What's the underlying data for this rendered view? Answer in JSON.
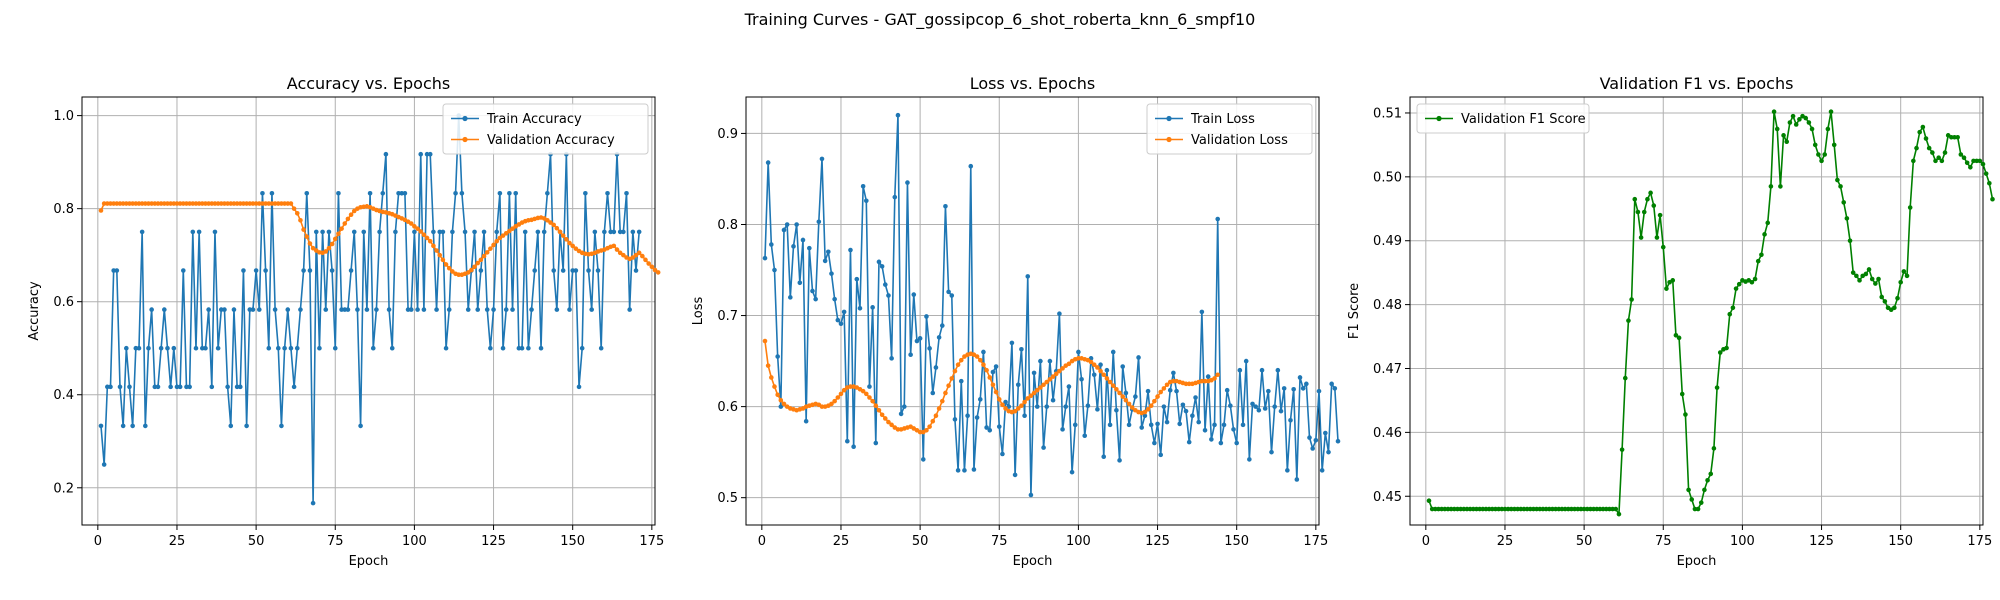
{
  "figure_title": "Training Curves - GAT_gossipcop_6_shot_roberta_knn_6_smpf10",
  "colors": {
    "blue": "#1f77b4",
    "orange": "#ff7f0e",
    "green": "#008000",
    "grid": "#b0b0b0"
  },
  "chart_data": [
    {
      "type": "line",
      "title": "Accuracy vs. Epochs",
      "xlabel": "Epoch",
      "ylabel": "Accuracy",
      "xlim": [
        -5,
        176
      ],
      "ylim": [
        0.12,
        1.04
      ],
      "xticks": [
        0,
        25,
        50,
        75,
        100,
        125,
        150,
        175
      ],
      "yticks": [
        0.2,
        0.4,
        0.6,
        0.8,
        1.0
      ],
      "ytick_labels": [
        "0.2",
        "0.4",
        "0.6",
        "0.8",
        "1.0"
      ],
      "grid": true,
      "legend_position": "upper-right",
      "series": [
        {
          "name": "Train Accuracy",
          "color": "#1f77b4",
          "values": [
            0.333,
            0.25,
            0.417,
            0.417,
            0.667,
            0.667,
            0.417,
            0.333,
            0.5,
            0.417,
            0.333,
            0.5,
            0.5,
            0.75,
            0.333,
            0.5,
            0.583,
            0.417,
            0.417,
            0.5,
            0.583,
            0.5,
            0.417,
            0.5,
            0.417,
            0.417,
            0.667,
            0.417,
            0.417,
            0.75,
            0.5,
            0.75,
            0.5,
            0.5,
            0.583,
            0.417,
            0.75,
            0.5,
            0.583,
            0.583,
            0.417,
            0.333,
            0.583,
            0.417,
            0.417,
            0.667,
            0.333,
            0.583,
            0.583,
            0.667,
            0.583,
            0.833,
            0.667,
            0.5,
            0.833,
            0.583,
            0.5,
            0.333,
            0.5,
            0.583,
            0.5,
            0.417,
            0.5,
            0.583,
            0.667,
            0.833,
            0.667,
            0.167,
            0.75,
            0.5,
            0.75,
            0.583,
            0.75,
            0.667,
            0.5,
            0.833,
            0.583,
            0.583,
            0.583,
            0.667,
            0.75,
            0.583,
            0.333,
            0.75,
            0.583,
            0.833,
            0.5,
            0.583,
            0.75,
            0.833,
            0.917,
            0.583,
            0.5,
            0.75,
            0.833,
            0.833,
            0.833,
            0.583,
            0.583,
            0.75,
            0.583,
            0.917,
            0.583,
            0.917,
            0.917,
            0.75,
            0.583,
            0.75,
            0.75,
            0.5,
            0.583,
            0.75,
            0.833,
            1.0,
            0.833,
            0.75,
            0.583,
            0.667,
            0.75,
            0.583,
            0.667,
            0.75,
            0.583,
            0.5,
            0.583,
            0.75,
            0.833,
            0.5,
            0.583,
            0.833,
            0.583,
            0.833,
            0.5,
            0.5,
            0.75,
            0.5,
            0.583,
            0.667,
            0.75,
            0.5,
            0.75,
            0.833,
            0.917,
            0.667,
            0.583,
            0.75,
            0.667,
            0.917,
            0.583,
            0.667,
            0.667,
            0.417,
            0.5,
            0.833,
            0.667,
            0.583,
            0.75,
            0.667,
            0.5,
            0.75,
            0.833,
            0.75,
            0.75,
            0.917,
            0.75,
            0.75,
            0.833,
            0.583,
            0.75,
            0.667,
            0.75
          ]
        },
        {
          "name": "Validation Accuracy",
          "color": "#ff7f0e",
          "values": [
            0.796,
            0.811,
            0.811,
            0.811,
            0.811,
            0.811,
            0.811,
            0.811,
            0.811,
            0.811,
            0.811,
            0.811,
            0.811,
            0.811,
            0.811,
            0.811,
            0.811,
            0.811,
            0.811,
            0.811,
            0.811,
            0.811,
            0.811,
            0.811,
            0.811,
            0.811,
            0.811,
            0.811,
            0.811,
            0.811,
            0.811,
            0.811,
            0.811,
            0.811,
            0.811,
            0.811,
            0.811,
            0.811,
            0.811,
            0.811,
            0.811,
            0.811,
            0.811,
            0.811,
            0.811,
            0.811,
            0.811,
            0.811,
            0.811,
            0.811,
            0.811,
            0.811,
            0.811,
            0.811,
            0.811,
            0.811,
            0.811,
            0.811,
            0.811,
            0.811,
            0.811,
            0.8,
            0.79,
            0.775,
            0.755,
            0.74,
            0.725,
            0.715,
            0.71,
            0.706,
            0.705,
            0.708,
            0.715,
            0.724,
            0.735,
            0.746,
            0.757,
            0.768,
            0.778,
            0.787,
            0.795,
            0.8,
            0.803,
            0.804,
            0.805,
            0.803,
            0.8,
            0.797,
            0.795,
            0.793,
            0.792,
            0.79,
            0.788,
            0.785,
            0.782,
            0.779,
            0.776,
            0.772,
            0.768,
            0.762,
            0.757,
            0.751,
            0.744,
            0.737,
            0.73,
            0.72,
            0.71,
            0.7,
            0.69,
            0.68,
            0.672,
            0.665,
            0.66,
            0.658,
            0.658,
            0.66,
            0.663,
            0.668,
            0.675,
            0.683,
            0.69,
            0.698,
            0.706,
            0.714,
            0.722,
            0.73,
            0.737,
            0.742,
            0.747,
            0.752,
            0.757,
            0.762,
            0.766,
            0.77,
            0.773,
            0.775,
            0.776,
            0.778,
            0.78,
            0.781,
            0.779,
            0.775,
            0.77,
            0.765,
            0.758,
            0.75,
            0.742,
            0.734,
            0.726,
            0.72,
            0.714,
            0.709,
            0.705,
            0.703,
            0.702,
            0.703,
            0.705,
            0.708,
            0.71,
            0.712,
            0.715,
            0.718,
            0.72,
            0.712,
            0.705,
            0.7,
            0.695,
            0.692,
            0.695,
            0.7,
            0.705,
            0.698,
            0.69,
            0.682,
            0.675,
            0.668,
            0.663
          ]
        }
      ]
    },
    {
      "type": "line",
      "title": "Loss vs. Epochs",
      "xlabel": "Epoch",
      "ylabel": "Loss",
      "xlim": [
        -5,
        176
      ],
      "ylim": [
        0.47,
        0.94
      ],
      "xticks": [
        0,
        25,
        50,
        75,
        100,
        125,
        150,
        175
      ],
      "yticks": [
        0.5,
        0.6,
        0.7,
        0.8,
        0.9
      ],
      "ytick_labels": [
        "0.5",
        "0.6",
        "0.7",
        "0.8",
        "0.9"
      ],
      "grid": true,
      "legend_position": "upper-right",
      "series": [
        {
          "name": "Train Loss",
          "color": "#1f77b4",
          "values": [
            0.763,
            0.868,
            0.778,
            0.75,
            0.655,
            0.6,
            0.794,
            0.8,
            0.72,
            0.776,
            0.8,
            0.736,
            0.783,
            0.584,
            0.774,
            0.727,
            0.718,
            0.803,
            0.872,
            0.76,
            0.77,
            0.746,
            0.718,
            0.695,
            0.691,
            0.704,
            0.562,
            0.772,
            0.556,
            0.74,
            0.708,
            0.842,
            0.826,
            0.622,
            0.709,
            0.56,
            0.759,
            0.754,
            0.734,
            0.722,
            0.653,
            0.83,
            0.92,
            0.592,
            0.6,
            0.846,
            0.657,
            0.723,
            0.672,
            0.675,
            0.542,
            0.699,
            0.664,
            0.615,
            0.643,
            0.676,
            0.689,
            0.82,
            0.726,
            0.722,
            0.586,
            0.53,
            0.628,
            0.53,
            0.59,
            0.864,
            0.531,
            0.588,
            0.608,
            0.66,
            0.577,
            0.574,
            0.638,
            0.644,
            0.578,
            0.548,
            0.605,
            0.6,
            0.67,
            0.525,
            0.624,
            0.663,
            0.59,
            0.743,
            0.503,
            0.637,
            0.6,
            0.65,
            0.555,
            0.6,
            0.65,
            0.607,
            0.639,
            0.702,
            0.575,
            0.6,
            0.622,
            0.528,
            0.58,
            0.66,
            0.63,
            0.568,
            0.601,
            0.653,
            0.635,
            0.597,
            0.646,
            0.545,
            0.64,
            0.58,
            0.66,
            0.596,
            0.541,
            0.644,
            0.615,
            0.58,
            0.597,
            0.611,
            0.654,
            0.577,
            0.59,
            0.617,
            0.58,
            0.56,
            0.581,
            0.547,
            0.6,
            0.583,
            0.618,
            0.637,
            0.617,
            0.581,
            0.602,
            0.595,
            0.561,
            0.59,
            0.61,
            0.583,
            0.704,
            0.574,
            0.633,
            0.564,
            0.58,
            0.806,
            0.56,
            0.58,
            0.618,
            0.601,
            0.575,
            0.56,
            0.64,
            0.58,
            0.65,
            0.542,
            0.603,
            0.6,
            0.596,
            0.64,
            0.598,
            0.617,
            0.55,
            0.6,
            0.64,
            0.595,
            0.62,
            0.53,
            0.585,
            0.619,
            0.52,
            0.632,
            0.62,
            0.625,
            0.566,
            0.554,
            0.563,
            0.617,
            0.53,
            0.571,
            0.55,
            0.625,
            0.62,
            0.562
          ]
        },
        {
          "name": "Validation Loss",
          "color": "#ff7f0e",
          "values": [
            0.672,
            0.645,
            0.632,
            0.622,
            0.613,
            0.607,
            0.603,
            0.6,
            0.598,
            0.597,
            0.596,
            0.597,
            0.598,
            0.6,
            0.601,
            0.602,
            0.603,
            0.602,
            0.6,
            0.6,
            0.601,
            0.603,
            0.606,
            0.61,
            0.614,
            0.618,
            0.621,
            0.622,
            0.622,
            0.621,
            0.619,
            0.617,
            0.614,
            0.61,
            0.606,
            0.601,
            0.596,
            0.591,
            0.587,
            0.583,
            0.58,
            0.577,
            0.575,
            0.575,
            0.576,
            0.577,
            0.578,
            0.576,
            0.574,
            0.572,
            0.572,
            0.574,
            0.578,
            0.584,
            0.59,
            0.598,
            0.606,
            0.615,
            0.623,
            0.631,
            0.639,
            0.646,
            0.651,
            0.655,
            0.657,
            0.658,
            0.657,
            0.655,
            0.651,
            0.646,
            0.64,
            0.632,
            0.624,
            0.616,
            0.608,
            0.602,
            0.598,
            0.595,
            0.594,
            0.595,
            0.598,
            0.601,
            0.605,
            0.609,
            0.612,
            0.615,
            0.618,
            0.621,
            0.624,
            0.627,
            0.63,
            0.633,
            0.636,
            0.639,
            0.642,
            0.645,
            0.647,
            0.65,
            0.652,
            0.653,
            0.653,
            0.652,
            0.651,
            0.649,
            0.646,
            0.643,
            0.639,
            0.635,
            0.631,
            0.627,
            0.623,
            0.619,
            0.615,
            0.611,
            0.607,
            0.603,
            0.599,
            0.596,
            0.594,
            0.593,
            0.594,
            0.597,
            0.601,
            0.606,
            0.611,
            0.616,
            0.62,
            0.624,
            0.627,
            0.628,
            0.628,
            0.627,
            0.626,
            0.625,
            0.625,
            0.625,
            0.626,
            0.627,
            0.628,
            0.628,
            0.628,
            0.629,
            0.631,
            0.635
          ]
        }
      ]
    },
    {
      "type": "line",
      "title": "Validation F1 vs. Epochs",
      "xlabel": "Epoch",
      "ylabel": "F1 Score",
      "xlim": [
        -5,
        176
      ],
      "ylim": [
        0.4455,
        0.5125
      ],
      "xticks": [
        0,
        25,
        50,
        75,
        100,
        125,
        150,
        175
      ],
      "yticks": [
        0.45,
        0.46,
        0.47,
        0.48,
        0.49,
        0.5,
        0.51
      ],
      "ytick_labels": [
        "0.45",
        "0.46",
        "0.47",
        "0.48",
        "0.49",
        "0.50",
        "0.51"
      ],
      "grid": true,
      "legend_position": "upper-left",
      "series": [
        {
          "name": "Validation F1 Score",
          "color": "#008000",
          "values": [
            0.4493,
            0.448,
            0.448,
            0.448,
            0.448,
            0.448,
            0.448,
            0.448,
            0.448,
            0.448,
            0.448,
            0.448,
            0.448,
            0.448,
            0.448,
            0.448,
            0.448,
            0.448,
            0.448,
            0.448,
            0.448,
            0.448,
            0.448,
            0.448,
            0.448,
            0.448,
            0.448,
            0.448,
            0.448,
            0.448,
            0.448,
            0.448,
            0.448,
            0.448,
            0.448,
            0.448,
            0.448,
            0.448,
            0.448,
            0.448,
            0.448,
            0.448,
            0.448,
            0.448,
            0.448,
            0.448,
            0.448,
            0.448,
            0.448,
            0.448,
            0.448,
            0.448,
            0.448,
            0.448,
            0.448,
            0.448,
            0.448,
            0.448,
            0.448,
            0.448,
            0.4472,
            0.4573,
            0.4685,
            0.4775,
            0.4808,
            0.4965,
            0.4945,
            0.4905,
            0.4945,
            0.4965,
            0.4975,
            0.4955,
            0.4905,
            0.494,
            0.489,
            0.4825,
            0.4835,
            0.4838,
            0.4752,
            0.4748,
            0.466,
            0.4628,
            0.451,
            0.4495,
            0.448,
            0.448,
            0.449,
            0.451,
            0.4525,
            0.4535,
            0.4575,
            0.467,
            0.4725,
            0.473,
            0.4732,
            0.4785,
            0.4795,
            0.4825,
            0.4832,
            0.4838,
            0.4836,
            0.4838,
            0.4835,
            0.484,
            0.4868,
            0.4878,
            0.491,
            0.4928,
            0.4985,
            0.5102,
            0.5075,
            0.4985,
            0.5065,
            0.5055,
            0.5085,
            0.5095,
            0.5082,
            0.509,
            0.5095,
            0.5092,
            0.5085,
            0.5075,
            0.505,
            0.5035,
            0.5025,
            0.5035,
            0.5075,
            0.5102,
            0.505,
            0.4995,
            0.4985,
            0.496,
            0.4935,
            0.49,
            0.485,
            0.4845,
            0.4838,
            0.4845,
            0.4848,
            0.4855,
            0.484,
            0.4833,
            0.484,
            0.4812,
            0.4805,
            0.4795,
            0.4792,
            0.4795,
            0.481,
            0.4835,
            0.4852,
            0.4845,
            0.4952,
            0.5025,
            0.5045,
            0.507,
            0.5078,
            0.506,
            0.5045,
            0.5038,
            0.5025,
            0.503,
            0.5025,
            0.5038,
            0.5065,
            0.5062,
            0.5062,
            0.5062,
            0.5035,
            0.503,
            0.5022,
            0.5015,
            0.5025,
            0.5025,
            0.5025,
            0.502,
            0.5005,
            0.499,
            0.4965
          ]
        }
      ]
    }
  ]
}
